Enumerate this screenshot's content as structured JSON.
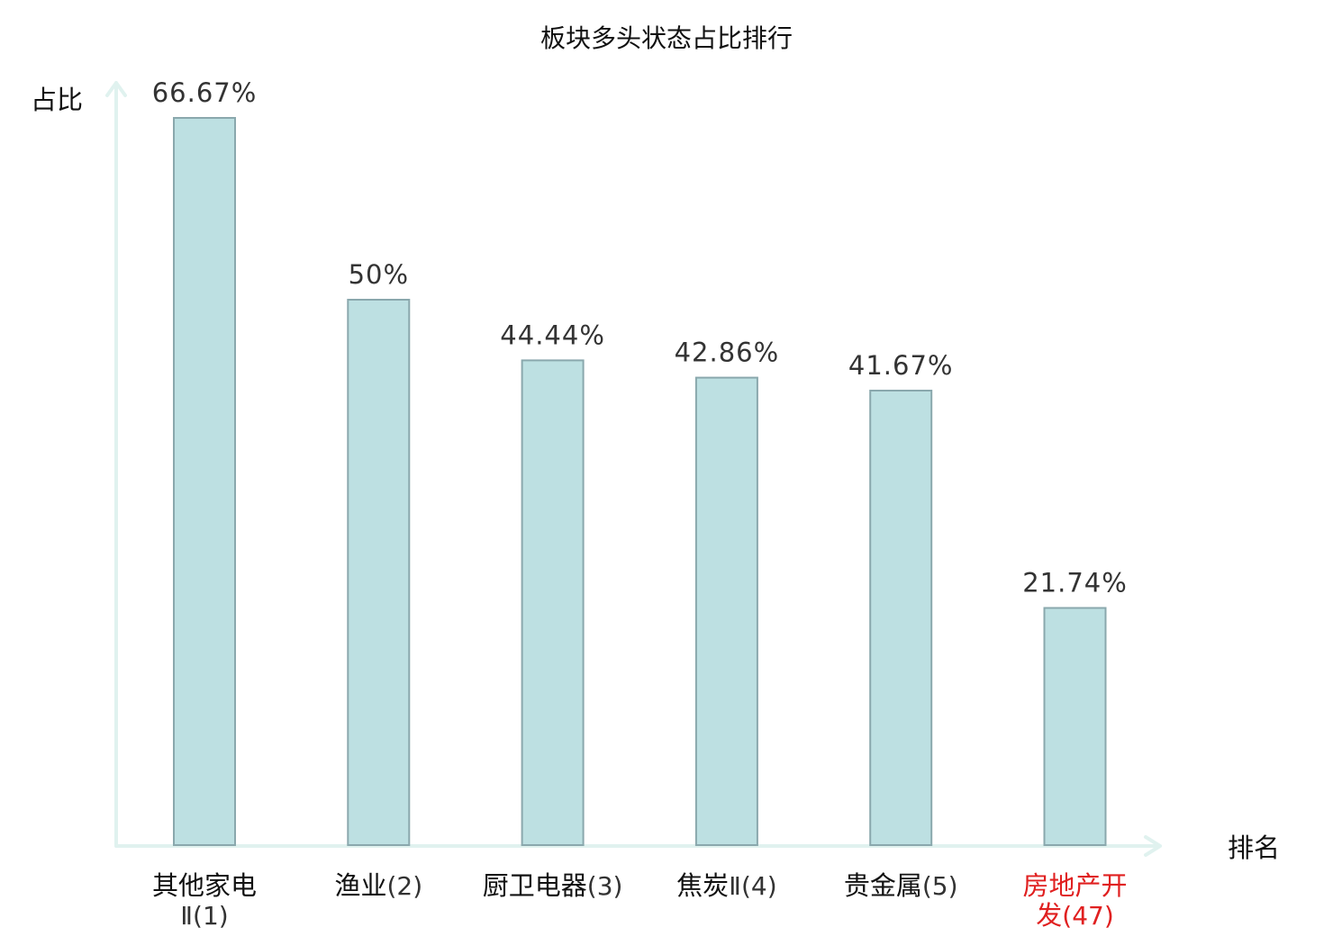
{
  "chart_data": {
    "type": "bar",
    "title": "板块多头状态占比排行",
    "ylabel": "占比",
    "xlabel": "排名",
    "ylim": [
      0,
      70
    ],
    "grid": false,
    "categories": [
      {
        "lines": [
          {
            "main": "其他家电",
            "paren": ""
          },
          {
            "main": "",
            "paren": "Ⅱ(1)"
          }
        ],
        "highlight": false
      },
      {
        "lines": [
          {
            "main": "渔业",
            "paren": "(2)"
          }
        ],
        "highlight": false
      },
      {
        "lines": [
          {
            "main": "厨卫电器",
            "paren": "(3)"
          }
        ],
        "highlight": false
      },
      {
        "lines": [
          {
            "main": "焦炭",
            "paren": "Ⅱ(4)"
          }
        ],
        "highlight": false
      },
      {
        "lines": [
          {
            "main": "贵金属",
            "paren": "(5)"
          }
        ],
        "highlight": false
      },
      {
        "lines": [
          {
            "main": "房地产开",
            "paren": ""
          },
          {
            "main": "发",
            "paren": "(47)"
          }
        ],
        "highlight": true
      }
    ],
    "values": [
      66.67,
      50,
      44.44,
      42.86,
      41.67,
      21.74
    ],
    "value_labels": [
      "66.67%",
      "50%",
      "44.44%",
      "42.86%",
      "41.67%",
      "21.74%"
    ],
    "colors": {
      "bar_fill": "#bde0e2",
      "bar_stroke": "#8aa8ad",
      "axis": "#e0f2ef",
      "highlight_label": "#e02020"
    }
  }
}
